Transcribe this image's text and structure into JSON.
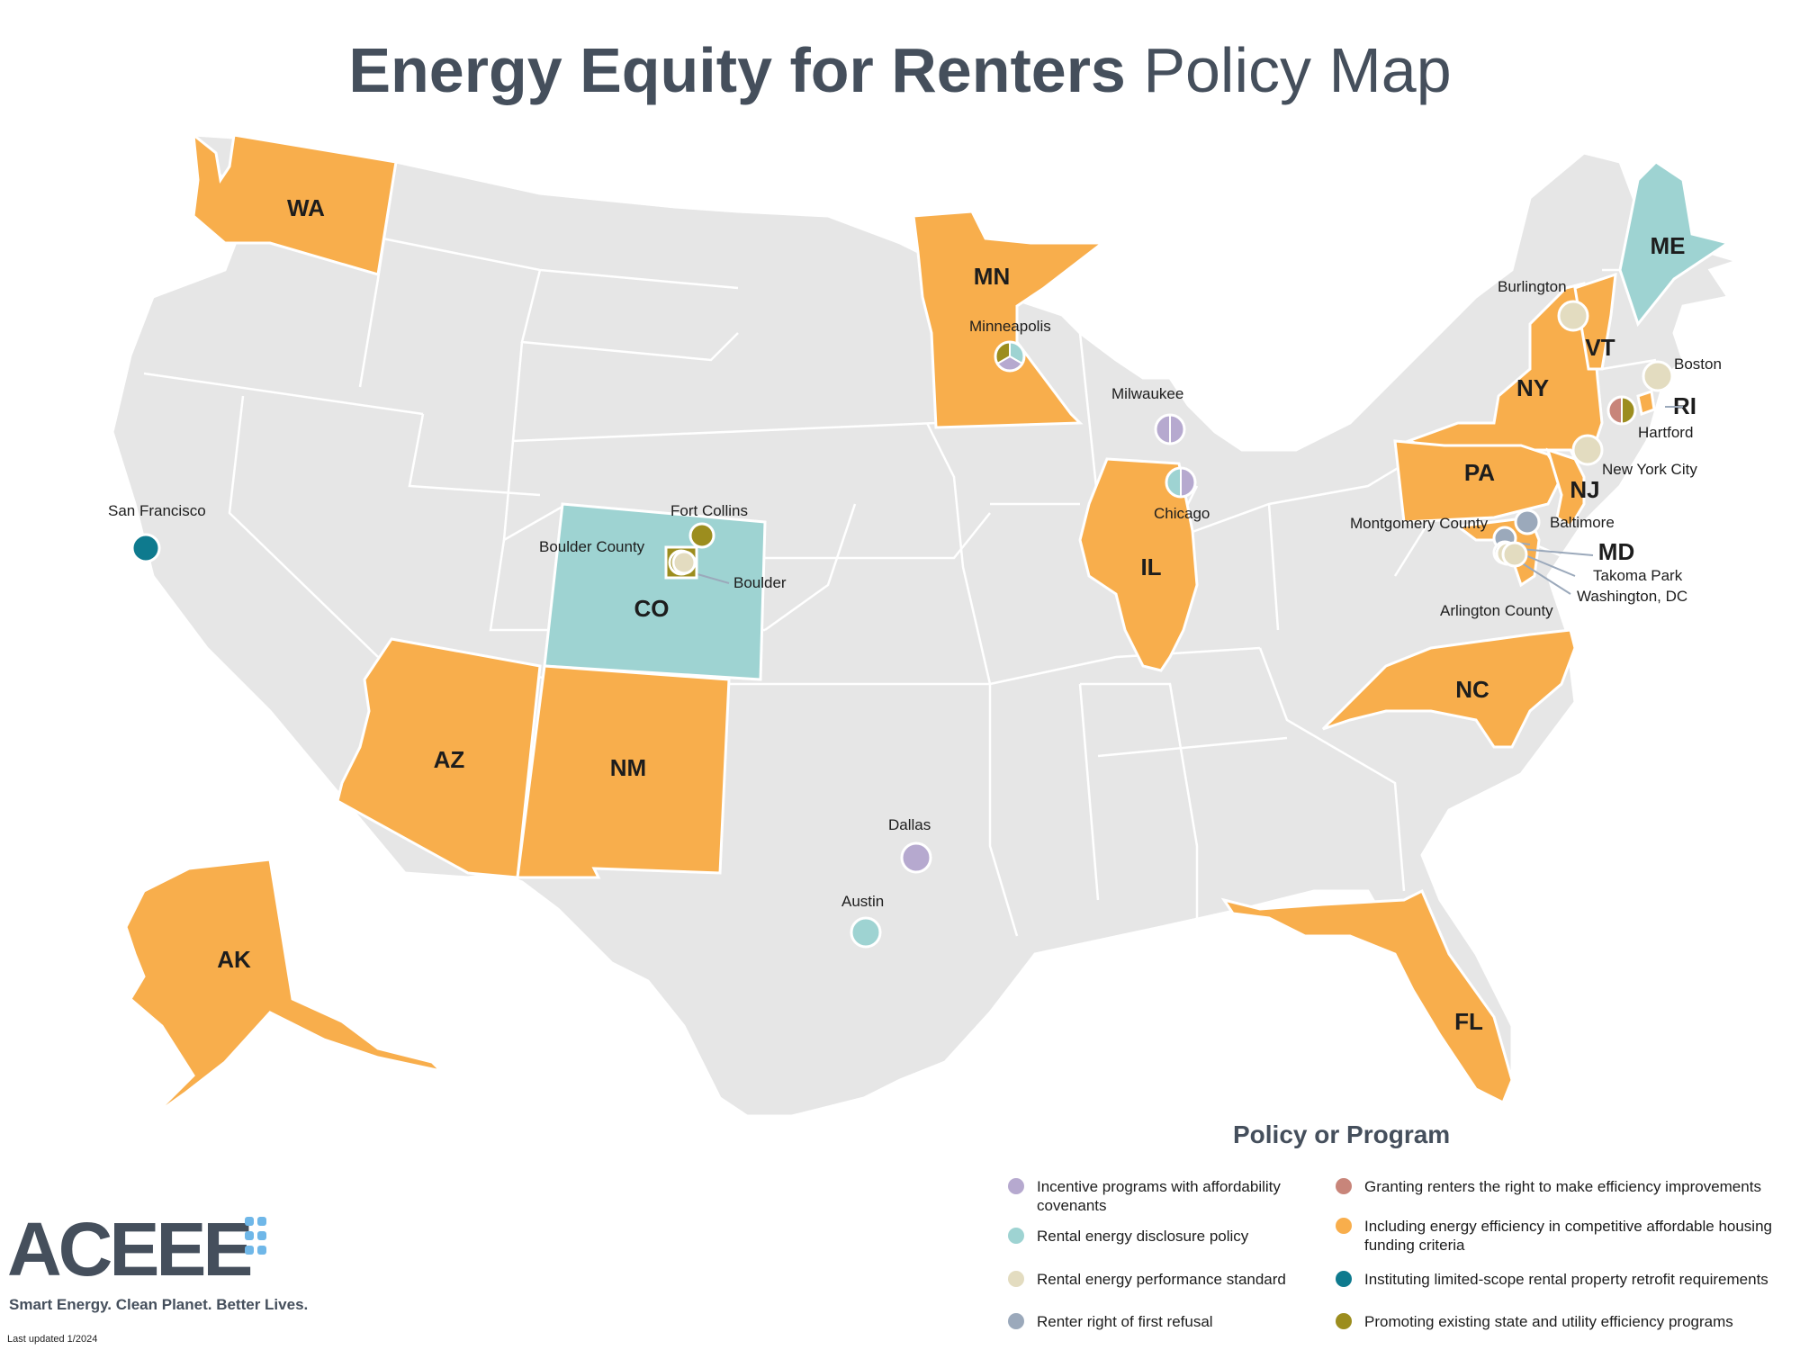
{
  "title": {
    "bold": "Energy Equity for Renters",
    "light": "Policy Map"
  },
  "colors": {
    "base": "#e6e6e6",
    "border": "#ffffff",
    "incentive": "#b6a9cf",
    "disclosure": "#9ed3d2",
    "performance": "#e3dcc0",
    "first_refusal": "#9ba9bb",
    "right_to_improve": "#c8857a",
    "affordable_housing": "#f8ae4c",
    "retrofit": "#0e7a8e",
    "promoting": "#9c8d1e"
  },
  "states": [
    {
      "abbr": "WA",
      "fill": "affordable_housing"
    },
    {
      "abbr": "MN",
      "fill": "affordable_housing"
    },
    {
      "abbr": "CO",
      "fill": "disclosure"
    },
    {
      "abbr": "AZ",
      "fill": "affordable_housing"
    },
    {
      "abbr": "NM",
      "fill": "affordable_housing"
    },
    {
      "abbr": "AK",
      "fill": "affordable_housing"
    },
    {
      "abbr": "IL",
      "fill": "affordable_housing"
    },
    {
      "abbr": "NY",
      "fill": "affordable_housing"
    },
    {
      "abbr": "VT",
      "fill": "affordable_housing"
    },
    {
      "abbr": "PA",
      "fill": "affordable_housing"
    },
    {
      "abbr": "NJ",
      "fill": "affordable_housing"
    },
    {
      "abbr": "MD",
      "fill": "affordable_housing"
    },
    {
      "abbr": "NC",
      "fill": "affordable_housing"
    },
    {
      "abbr": "FL",
      "fill": "affordable_housing"
    },
    {
      "abbr": "ME",
      "fill": "disclosure"
    },
    {
      "abbr": "RI",
      "fill": "affordable_housing"
    }
  ],
  "cities": [
    {
      "name": "San Francisco",
      "policies": [
        "retrofit"
      ]
    },
    {
      "name": "Fort Collins",
      "policies": [
        "promoting"
      ]
    },
    {
      "name": "Boulder County",
      "policies": [
        "promoting"
      ]
    },
    {
      "name": "Boulder",
      "policies": [
        "performance"
      ]
    },
    {
      "name": "Minneapolis",
      "policies": [
        "disclosure",
        "incentive",
        "promoting"
      ]
    },
    {
      "name": "Milwaukee",
      "policies": [
        "incentive",
        "incentive"
      ]
    },
    {
      "name": "Chicago",
      "policies": [
        "incentive",
        "disclosure"
      ]
    },
    {
      "name": "Dallas",
      "policies": [
        "incentive"
      ]
    },
    {
      "name": "Austin",
      "policies": [
        "disclosure"
      ]
    },
    {
      "name": "Burlington",
      "policies": [
        "performance"
      ]
    },
    {
      "name": "Boston",
      "policies": [
        "performance"
      ]
    },
    {
      "name": "Hartford",
      "policies": [
        "promoting",
        "right_to_improve"
      ]
    },
    {
      "name": "New York City",
      "policies": [
        "performance"
      ]
    },
    {
      "name": "Baltimore",
      "policies": [
        "first_refusal"
      ]
    },
    {
      "name": "Montgomery County",
      "policies": [
        "first_refusal"
      ]
    },
    {
      "name": "Takoma Park",
      "policies": [
        "first_refusal"
      ]
    },
    {
      "name": "Washington, DC",
      "policies": [
        "first_refusal",
        "performance"
      ]
    },
    {
      "name": "Arlington County",
      "policies": [
        "performance"
      ]
    }
  ],
  "legend": {
    "title": "Policy or Program",
    "items": [
      {
        "key": "incentive",
        "label": "Incentive programs with affordability covenants"
      },
      {
        "key": "disclosure",
        "label": "Rental energy disclosure policy"
      },
      {
        "key": "performance",
        "label": "Rental energy performance standard"
      },
      {
        "key": "first_refusal",
        "label": "Renter right of first refusal"
      },
      {
        "key": "right_to_improve",
        "label": "Granting renters the right to make efficiency improvements"
      },
      {
        "key": "affordable_housing",
        "label": "Including energy efficiency in competitive affordable housing funding criteria"
      },
      {
        "key": "retrofit",
        "label": "Instituting limited-scope rental property retrofit requirements"
      },
      {
        "key": "promoting",
        "label": "Promoting existing state and utility efficiency programs"
      }
    ]
  },
  "logo": {
    "name": "ACEEE",
    "tagline": "Smart Energy. Clean Planet. Better Lives."
  },
  "updated": "Last updated 1/2024"
}
